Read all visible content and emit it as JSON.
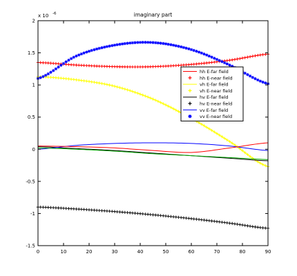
{
  "chart_data": {
    "type": "line",
    "title": "imaginary part",
    "xlabel": "",
    "ylabel": "",
    "xlim": [
      0,
      90
    ],
    "ylim": [
      -1.5e-06,
      2e-06
    ],
    "xticks": [
      "0",
      "10",
      "20",
      "30",
      "40",
      "50",
      "60",
      "70",
      "80",
      "90"
    ],
    "yticks": [
      "-1.5",
      "-1",
      "-0.5",
      "0",
      "0.5",
      "1",
      "1.5",
      "2"
    ],
    "ytick_values": [
      -1.5,
      -1,
      -0.5,
      0,
      0.5,
      1,
      1.5,
      2
    ],
    "y_multiplier": "x 10",
    "y_exponent": "-6",
    "grid": false,
    "legend_position": "right",
    "x": [
      0,
      15,
      30,
      45,
      60,
      75,
      90
    ],
    "series": [
      {
        "name": "hh E-far field",
        "style": "line",
        "color": "#ff0000",
        "values": [
          1.35e-06,
          1.31e-06,
          1.285e-06,
          1.285e-06,
          1.32e-06,
          1.385e-06,
          1.48e-06
        ]
      },
      {
        "name": "hh E-near field",
        "style": "markers",
        "marker": "+",
        "color": "#ff0000",
        "values": [
          1.35e-06,
          1.31e-06,
          1.285e-06,
          1.285e-06,
          1.32e-06,
          1.385e-06,
          1.48e-06
        ]
      },
      {
        "name": "vh E-far field",
        "style": "line",
        "color": "#ffff00",
        "values": [
          1.13e-06,
          1.08e-06,
          9.8e-07,
          7.8e-07,
          4.8e-07,
          1.2e-07,
          -2.7e-07
        ]
      },
      {
        "name": "vh E-near field",
        "style": "markers",
        "marker": "+",
        "color": "#ffff00",
        "values": [
          1.13e-06,
          1.08e-06,
          9.8e-07,
          7.8e-07,
          4.8e-07,
          1.2e-07,
          -2.7e-07
        ]
      },
      {
        "name": "hv E-far field",
        "style": "line",
        "color": "#000000",
        "values": [
          4e-08,
          1e-08,
          -2e-08,
          -6e-08,
          -1e-07,
          -1.4e-07,
          -1.8e-07
        ]
      },
      {
        "name": "hv E-near field",
        "style": "markers",
        "marker": "+",
        "color": "#000000",
        "values": [
          -9e-07,
          -9.3e-07,
          -9.7e-07,
          -1.02e-06,
          -1.08e-06,
          -1.15e-06,
          -1.23e-06
        ]
      },
      {
        "name": "vv E-far field",
        "style": "line",
        "color": "#0000ff",
        "values": [
          0.0,
          6e-08,
          9e-08,
          1e-07,
          9e-08,
          5e-08,
          -2e-08
        ]
      },
      {
        "name": "vv E-near field",
        "style": "markers",
        "marker": "*",
        "color": "#0000ff",
        "values": [
          1.1e-06,
          1.45e-06,
          1.62e-06,
          1.66e-06,
          1.55e-06,
          1.31e-06,
          1.02e-06
        ]
      },
      {
        "name": "",
        "style": "line",
        "color": "#ff0000",
        "values": [
          5e-08,
          4e-08,
          2e-08,
          -2e-08,
          -5e-08,
          2e-08,
          1e-07
        ]
      },
      {
        "name": "",
        "style": "line",
        "color": "#00aa00",
        "values": [
          2e-08,
          0.0,
          -3e-08,
          -7e-08,
          -1e-07,
          -1.3e-07,
          -1.6e-07
        ]
      }
    ]
  }
}
